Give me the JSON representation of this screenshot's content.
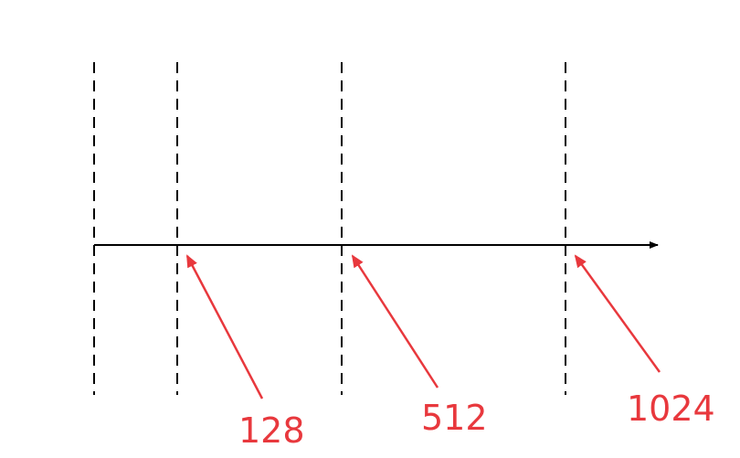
{
  "colors": {
    "line": "#000000",
    "annotation": "#e8383d",
    "background": "#ffffff"
  },
  "annotations": [
    {
      "label": "128"
    },
    {
      "label": "512"
    },
    {
      "label": "1024"
    }
  ]
}
